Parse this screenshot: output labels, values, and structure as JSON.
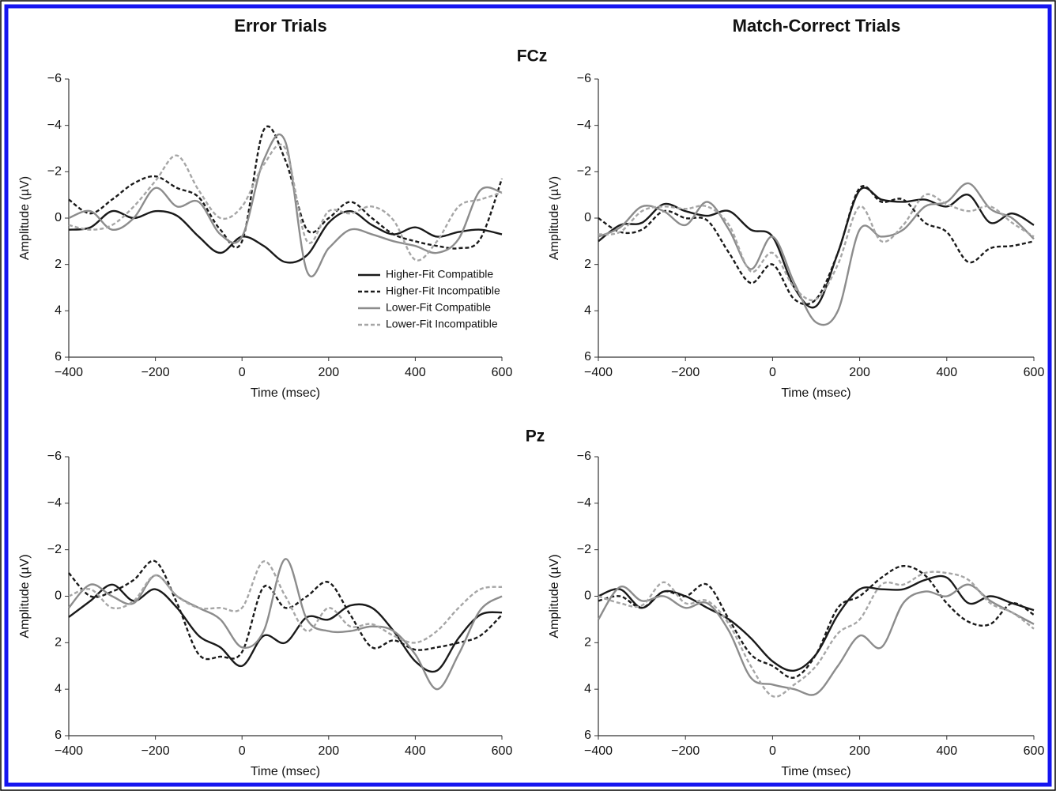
{
  "column_titles": [
    "Error Trials",
    "Match-Correct Trials"
  ],
  "row_titles": [
    "FCz",
    "Pz"
  ],
  "chart_data": [
    {
      "type": "line",
      "x_label": "Time (msec)",
      "y_label": "Amplitude (µV)",
      "legend": "lower-right",
      "y_reversed": true,
      "x": [
        -400,
        -350,
        -300,
        -250,
        -200,
        -150,
        -100,
        -50,
        0,
        50,
        100,
        150,
        200,
        250,
        300,
        350,
        400,
        450,
        500,
        550,
        600
      ],
      "xlim": [
        -400,
        600
      ],
      "xticks": [
        {
          "value": -400,
          "label": "−400"
        },
        {
          "value": -200,
          "label": "−200"
        },
        0,
        200,
        400,
        600
      ],
      "ylim": [
        -6,
        6
      ],
      "yticks": [
        {
          "value": -6,
          "label": "−6"
        },
        {
          "value": -4,
          "label": "−4"
        },
        {
          "value": -2,
          "label": "−2"
        },
        0,
        2,
        4,
        6
      ],
      "series": [
        {
          "name": "Higher-Fit Compatible",
          "color": "#1a1a1a",
          "dash": "none",
          "values": [
            0.5,
            0.4,
            -0.3,
            0,
            -0.3,
            -0.1,
            0.8,
            1.5,
            0.8,
            1.2,
            1.9,
            1.6,
            0.2,
            -0.3,
            0.3,
            0.7,
            0.4,
            0.8,
            0.6,
            0.5,
            0.7
          ]
        },
        {
          "name": "Higher-Fit Incompatible",
          "color": "#1a1a1a",
          "dash": "5,3",
          "values": [
            -0.8,
            -0.2,
            -0.8,
            -1.5,
            -1.8,
            -1.3,
            -0.9,
            0.5,
            1.0,
            -3.8,
            -2.5,
            0.5,
            0,
            -0.7,
            0,
            0.7,
            1.0,
            1.2,
            1.3,
            0.9,
            -1.7
          ]
        },
        {
          "name": "Lower-Fit Compatible",
          "color": "#8c8c8c",
          "dash": "none",
          "values": [
            0,
            -0.3,
            0.5,
            0,
            -1.3,
            -0.5,
            -0.7,
            0.7,
            0.8,
            -2.5,
            -3.3,
            2.3,
            1.3,
            0.5,
            0.7,
            1.0,
            1.2,
            1.5,
            0.9,
            -1.2,
            -1.1
          ]
        },
        {
          "name": "Lower-Fit Incompatible",
          "color": "#a6a6a6",
          "dash": "5,3",
          "values": [
            0.3,
            0.5,
            0.3,
            -0.5,
            -1.6,
            -2.7,
            -1.2,
            0,
            -0.5,
            -2.3,
            -3.0,
            1.0,
            -0.3,
            -0.2,
            -0.5,
            0.1,
            1.8,
            1.0,
            -0.5,
            -0.8,
            -1.1
          ]
        }
      ]
    },
    {
      "type": "line",
      "x_label": "Time (msec)",
      "y_label": "Amplitude (µV)",
      "y_reversed": true,
      "x": [
        -400,
        -350,
        -300,
        -250,
        -200,
        -150,
        -100,
        -50,
        0,
        50,
        100,
        150,
        200,
        250,
        300,
        350,
        400,
        450,
        500,
        550,
        600
      ],
      "xlim": [
        -400,
        600
      ],
      "xticks": [
        {
          "value": -400,
          "label": "−400"
        },
        {
          "value": -200,
          "label": "−200"
        },
        0,
        200,
        400,
        600
      ],
      "ylim": [
        -6,
        6
      ],
      "yticks": [
        {
          "value": -6,
          "label": "−6"
        },
        {
          "value": -4,
          "label": "−4"
        },
        {
          "value": -2,
          "label": "−2"
        },
        0,
        2,
        4,
        6
      ],
      "series": [
        {
          "color": "#1a1a1a",
          "dash": "none",
          "values": [
            1.0,
            0.3,
            0.2,
            -0.6,
            -0.3,
            -0.1,
            -0.3,
            0.5,
            0.8,
            3.0,
            3.8,
            1.5,
            -1.2,
            -0.8,
            -0.7,
            -0.8,
            -0.5,
            -1.0,
            0.2,
            -0.2,
            0.3
          ]
        },
        {
          "color": "#1a1a1a",
          "dash": "5,3",
          "values": [
            0,
            0.6,
            0.5,
            -0.3,
            0,
            0.1,
            1.5,
            2.8,
            2.0,
            3.5,
            3.5,
            1.5,
            -1.3,
            -0.7,
            -0.8,
            0.2,
            0.6,
            1.9,
            1.3,
            1.2,
            1.0
          ]
        },
        {
          "color": "#8c8c8c",
          "dash": "none",
          "values": [
            0.8,
            0.4,
            -0.5,
            -0.3,
            0.3,
            -0.7,
            0.5,
            2.2,
            0.8,
            2.8,
            4.5,
            4.0,
            0.5,
            0.8,
            0.5,
            -0.5,
            -0.7,
            -1.5,
            -0.4,
            0,
            0.9
          ]
        },
        {
          "color": "#a6a6a6",
          "dash": "5,3",
          "values": [
            0.7,
            0.6,
            -0.3,
            -0.5,
            -0.4,
            -0.5,
            0.3,
            2.3,
            1.5,
            3.0,
            3.5,
            2.0,
            -0.5,
            1.0,
            0.3,
            -1.0,
            -0.6,
            -0.3,
            -0.5,
            0.2,
            0.8
          ]
        }
      ]
    },
    {
      "type": "line",
      "x_label": "Time (msec)",
      "y_label": "Amplitude (µV)",
      "y_reversed": true,
      "x": [
        -400,
        -350,
        -300,
        -250,
        -200,
        -150,
        -100,
        -50,
        0,
        50,
        100,
        150,
        200,
        250,
        300,
        350,
        400,
        450,
        500,
        550,
        600
      ],
      "xlim": [
        -400,
        600
      ],
      "xticks": [
        {
          "value": -400,
          "label": "−400"
        },
        {
          "value": -200,
          "label": "−200"
        },
        0,
        200,
        400,
        600
      ],
      "ylim": [
        -6,
        6
      ],
      "yticks": [
        {
          "value": -6,
          "label": "−6"
        },
        {
          "value": -4,
          "label": "−4"
        },
        {
          "value": -2,
          "label": "−2"
        },
        0,
        2,
        4,
        6
      ],
      "series": [
        {
          "color": "#1a1a1a",
          "dash": "none",
          "values": [
            0.9,
            0.2,
            -0.5,
            0.2,
            -0.3,
            0.5,
            1.7,
            2.2,
            3.0,
            1.7,
            2.0,
            0.9,
            1.0,
            0.4,
            0.5,
            1.5,
            2.8,
            3.2,
            1.8,
            0.8,
            0.7
          ]
        },
        {
          "color": "#1a1a1a",
          "dash": "5,3",
          "values": [
            -1.0,
            0,
            -0.2,
            -0.7,
            -1.5,
            0.3,
            2.5,
            2.6,
            2.4,
            -0.4,
            0.5,
            0,
            -0.6,
            0.8,
            2.2,
            1.9,
            2.3,
            2.2,
            2.0,
            1.7,
            0.8
          ]
        },
        {
          "color": "#8c8c8c",
          "dash": "none",
          "values": [
            0.5,
            -0.5,
            0,
            0.3,
            -0.9,
            0,
            0.5,
            1.0,
            2.2,
            1.5,
            -1.6,
            1.0,
            1.5,
            1.5,
            1.3,
            1.5,
            2.5,
            4.0,
            2.5,
            0.6,
            0
          ]
        },
        {
          "color": "#a6a6a6",
          "dash": "5,3",
          "values": [
            0,
            -0.3,
            0.5,
            0.2,
            -0.9,
            0,
            0.5,
            0.5,
            0.5,
            -1.5,
            0,
            1.5,
            0.5,
            1.3,
            1.2,
            1.7,
            2.0,
            1.5,
            0.5,
            -0.3,
            -0.4
          ]
        }
      ]
    },
    {
      "type": "line",
      "x_label": "Time (msec)",
      "y_label": "Amplitude (µV)",
      "y_reversed": true,
      "x": [
        -400,
        -350,
        -300,
        -250,
        -200,
        -150,
        -100,
        -50,
        0,
        50,
        100,
        150,
        200,
        250,
        300,
        350,
        400,
        450,
        500,
        550,
        600
      ],
      "xlim": [
        -400,
        600
      ],
      "xticks": [
        {
          "value": -400,
          "label": "−400"
        },
        {
          "value": -200,
          "label": "−200"
        },
        0,
        200,
        400,
        600
      ],
      "ylim": [
        -6,
        6
      ],
      "yticks": [
        {
          "value": -6,
          "label": "−6"
        },
        {
          "value": -4,
          "label": "−4"
        },
        {
          "value": -2,
          "label": "−2"
        },
        0,
        2,
        4,
        6
      ],
      "series": [
        {
          "color": "#1a1a1a",
          "dash": "none",
          "values": [
            0,
            -0.3,
            0.5,
            -0.2,
            0,
            0.5,
            1.0,
            1.8,
            2.8,
            3.2,
            2.5,
            0.8,
            -0.3,
            -0.3,
            -0.3,
            -0.7,
            -0.8,
            0.3,
            0,
            0.3,
            0.6
          ]
        },
        {
          "color": "#1a1a1a",
          "dash": "5,3",
          "values": [
            0.2,
            0,
            0.5,
            -0.2,
            0,
            -0.5,
            1.0,
            2.5,
            3.0,
            3.5,
            2.5,
            0.5,
            0,
            -0.8,
            -1.3,
            -0.9,
            0.3,
            1.1,
            1.2,
            0.3,
            0.8
          ]
        },
        {
          "color": "#8c8c8c",
          "dash": "none",
          "values": [
            1.0,
            -0.4,
            0.2,
            0,
            0.5,
            0.3,
            1.5,
            3.5,
            3.8,
            4.0,
            4.2,
            3.0,
            1.7,
            2.2,
            0.3,
            -0.2,
            0,
            -0.5,
            0.2,
            0.7,
            1.2
          ]
        },
        {
          "color": "#a6a6a6",
          "dash": "5,3",
          "values": [
            0,
            0.3,
            0.4,
            -0.6,
            0.3,
            0.2,
            1.2,
            3.0,
            4.3,
            3.8,
            3.0,
            1.6,
            1.0,
            -0.5,
            -0.5,
            -1.0,
            -1.0,
            -0.7,
            0.3,
            0.7,
            1.4
          ]
        }
      ]
    }
  ]
}
